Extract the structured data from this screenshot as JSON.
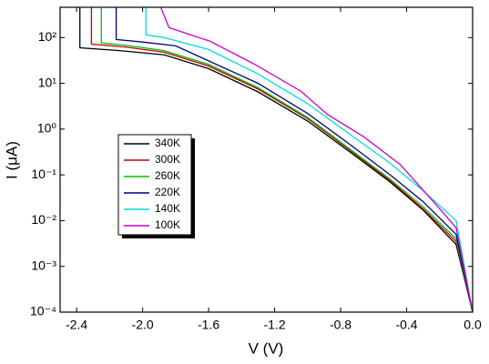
{
  "chart_data": {
    "type": "line",
    "xlabel": "V (V)",
    "ylabel": "I (μA)",
    "xlim": [
      -2.5,
      0
    ],
    "ylim": [
      0.0001,
      460
    ],
    "ylog": true,
    "xticks": [
      -2.4,
      {
        "value": -2,
        "label": "-2.0"
      },
      -1.6,
      -1.2,
      -0.8,
      -0.4,
      {
        "value": 0,
        "label": "0.0"
      }
    ],
    "yticks": [
      {
        "value": 0.0001,
        "label": "10⁻⁴"
      },
      {
        "value": 0.001,
        "label": "10⁻³"
      },
      {
        "value": 0.01,
        "label": "10⁻²"
      },
      {
        "value": 0.1,
        "label": "10⁻¹"
      },
      {
        "value": 1,
        "label": "10⁰"
      },
      {
        "value": 10,
        "label": "10¹"
      },
      {
        "value": 100,
        "label": "10²"
      }
    ],
    "grid": false,
    "legend": "center-left",
    "series": [
      {
        "name": "340K",
        "color": "#000000",
        "x": [
          -2.38,
          -2.38,
          -2.14,
          -1.87,
          -1.6,
          -1.3,
          -1.0,
          -0.75,
          -0.5,
          -0.3,
          -0.1,
          0
        ],
        "values": [
          460,
          60,
          52,
          42,
          21,
          6.5,
          1.5,
          0.33,
          0.07,
          0.017,
          0.003,
          0.0001
        ]
      },
      {
        "name": "300K",
        "color": "#c00000",
        "x": [
          -2.31,
          -2.31,
          -2.1,
          -1.87,
          -1.6,
          -1.3,
          -1.0,
          -0.75,
          -0.5,
          -0.3,
          -0.1,
          0
        ],
        "values": [
          460,
          72,
          62,
          48,
          24,
          7.5,
          1.7,
          0.36,
          0.075,
          0.018,
          0.0035,
          0.0001
        ]
      },
      {
        "name": "260K",
        "color": "#00c000",
        "x": [
          -2.25,
          -2.25,
          -2.1,
          -1.87,
          -1.6,
          -1.3,
          -1.0,
          -0.75,
          -0.5,
          -0.3,
          -0.1,
          0
        ],
        "values": [
          460,
          76,
          68,
          52,
          26,
          8,
          1.8,
          0.38,
          0.08,
          0.02,
          0.004,
          0.0001
        ]
      },
      {
        "name": "220K",
        "color": "#000080",
        "x": [
          -2.16,
          -2.16,
          -2.0,
          -1.8,
          -1.6,
          -1.3,
          -1.0,
          -0.75,
          -0.5,
          -0.3,
          -0.1,
          0
        ],
        "values": [
          460,
          91,
          80,
          66,
          31,
          10,
          2.2,
          0.48,
          0.1,
          0.026,
          0.005,
          0.0001
        ]
      },
      {
        "name": "140K",
        "color": "#00dede",
        "x": [
          -1.98,
          -1.98,
          -1.87,
          -1.6,
          -1.3,
          -1.0,
          -0.75,
          -0.5,
          -0.3,
          -0.1,
          0
        ],
        "values": [
          460,
          115,
          100,
          55,
          16,
          3.6,
          0.8,
          0.18,
          0.045,
          0.01,
          0.0001
        ]
      },
      {
        "name": "100K",
        "color": "#cc00cc",
        "x": [
          -1.89,
          -1.84,
          -1.59,
          -1.32,
          -1.04,
          -0.88,
          -0.66,
          -0.44,
          -0.22,
          -0.1,
          0
        ],
        "values": [
          460,
          165,
          83,
          26,
          6.7,
          2.1,
          0.68,
          0.17,
          0.022,
          0.007,
          0.0001
        ]
      }
    ]
  }
}
